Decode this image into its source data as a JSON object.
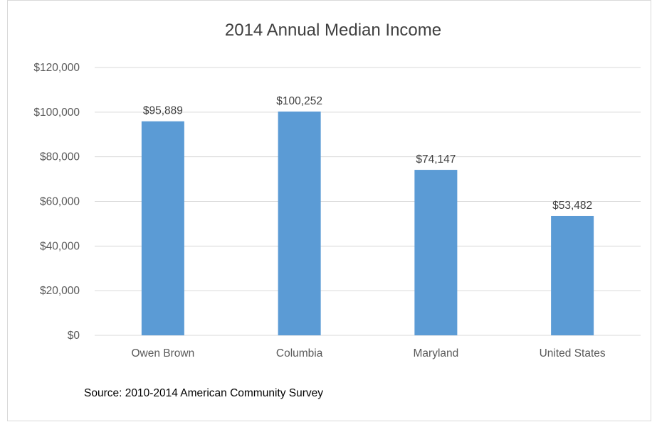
{
  "chart_data": {
    "type": "bar",
    "title": "2014 Annual Median Income",
    "categories": [
      "Owen Brown",
      "Columbia",
      "Maryland",
      "United States"
    ],
    "values": [
      95889,
      100252,
      74147,
      53482
    ],
    "data_labels": [
      "$95,889",
      "$100,252",
      "$74,147",
      "$53,482"
    ],
    "y_ticks": [
      0,
      20000,
      40000,
      60000,
      80000,
      100000,
      120000
    ],
    "y_tick_labels": [
      "$0",
      "$20,000",
      "$40,000",
      "$60,000",
      "$80,000",
      "$100,000",
      "$120,000"
    ],
    "ylim": [
      0,
      120000
    ],
    "xlabel": "",
    "ylabel": "",
    "grid": true,
    "legend": "none",
    "bar_color": "#5b9bd5",
    "grid_color": "#d9d9d9"
  },
  "source_note": "Source: 2010-2014 American Community Survey"
}
